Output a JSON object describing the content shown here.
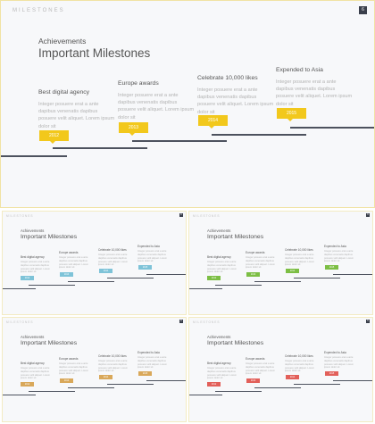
{
  "header_label": "MILESTONES",
  "page_number": "6",
  "slide": {
    "subtitle": "Achievements",
    "title": "Important Milestones",
    "milestones": [
      {
        "title": "Best digital agency",
        "text": "Integer posuere erat a ante dapibus venenatis dapibus posuere velit aliquet. Lorem ipsum dolor sit",
        "badge": "2012"
      },
      {
        "title": "Europe awards",
        "text": "Integer posuere erat a ante dapibus venenatis dapibus posuere velit aliquet. Lorem ipsum dolor sit",
        "badge": "2013"
      },
      {
        "title": "Celebrate 10,000 likes",
        "text": "Integer posuere erat a ante dapibus venenatis dapibus posuere velit aliquet. Lorem ipsum dolor sit",
        "badge": "2014"
      },
      {
        "title": "Expended to Asia",
        "text": "Integer posuere erat a ante dapibus venenatis dapibus posuere velit aliquet. Lorem ipsum dolor sit",
        "badge": "2015"
      }
    ]
  },
  "variants": [
    {
      "accent": "#f2c81c"
    },
    {
      "accent": "#7ec3d8"
    },
    {
      "accent": "#7cbe44"
    },
    {
      "accent": "#d9a85a"
    },
    {
      "accent": "#e2605a"
    }
  ]
}
